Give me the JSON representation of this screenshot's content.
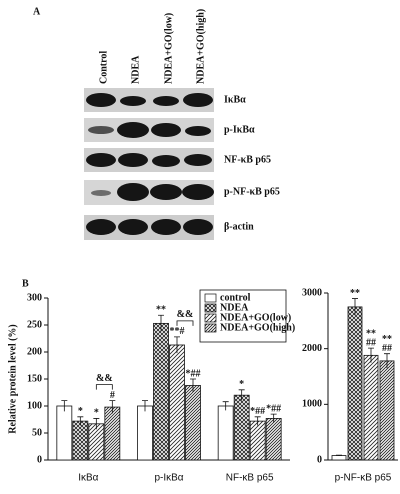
{
  "panel_a": {
    "label": "A",
    "lanes": [
      "Control",
      "NDEA",
      "NDEA+GO(low)",
      "NDEA+GO(high)"
    ],
    "rows": [
      "IκBα",
      "p-IκBα",
      "NF-κB p65",
      "p-NF-κB p65",
      "β-actin"
    ]
  },
  "panel_b_label": "B",
  "chart_data": [
    {
      "type": "bar",
      "ylabel": "Relative protein level (%)",
      "categories": [
        "IκBα",
        "p-IκBα",
        "NF-κB p65"
      ],
      "series": [
        {
          "name": "control",
          "pattern": "none",
          "values": [
            100,
            100,
            100
          ],
          "errors": [
            10,
            10,
            8
          ],
          "labels": [
            null,
            null,
            null
          ]
        },
        {
          "name": "NDEA",
          "pattern": "crosshatch",
          "values": [
            72,
            253,
            120
          ],
          "errors": [
            8,
            15,
            10
          ],
          "labels": [
            [
              "*"
            ],
            [
              "**"
            ],
            [
              "*"
            ]
          ]
        },
        {
          "name": "NDEA+GO(low)",
          "pattern": "hatch",
          "values": [
            67,
            213,
            72
          ],
          "errors": [
            10,
            15,
            8
          ],
          "labels": [
            [
              "*"
            ],
            [
              "**#"
            ],
            [
              "*##"
            ]
          ]
        },
        {
          "name": "NDEA+GO(high)",
          "pattern": "densehatch",
          "values": [
            98,
            138,
            77
          ],
          "errors": [
            12,
            12,
            8
          ],
          "labels": [
            [
              "#"
            ],
            [
              "*##"
            ],
            [
              "*##"
            ]
          ]
        }
      ],
      "bracket_labels": [
        "&&",
        "&&",
        null
      ],
      "ylim": [
        0,
        300
      ],
      "yticks": [
        0,
        50,
        100,
        150,
        200,
        250,
        300
      ],
      "legend": "upper right"
    },
    {
      "type": "bar",
      "categories": [
        "p-NF-κB p65"
      ],
      "series": [
        {
          "pattern": "none",
          "values": [
            80
          ],
          "errors": [
            8
          ],
          "labels": [
            null
          ]
        },
        {
          "pattern": "crosshatch",
          "values": [
            2750
          ],
          "errors": [
            150
          ],
          "labels": [
            [
              "**"
            ]
          ]
        },
        {
          "pattern": "hatch",
          "values": [
            1880
          ],
          "errors": [
            130
          ],
          "labels": [
            [
              "**",
              "##"
            ]
          ]
        },
        {
          "pattern": "densehatch",
          "values": [
            1780
          ],
          "errors": [
            130
          ],
          "labels": [
            [
              "**",
              "##"
            ]
          ]
        }
      ],
      "ylim": [
        0,
        3000
      ],
      "yticks": [
        0,
        1000,
        2000,
        3000
      ]
    }
  ]
}
